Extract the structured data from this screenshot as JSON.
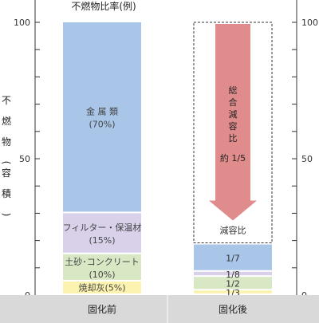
{
  "chart_data": {
    "type": "bar",
    "title": "不燃物比率(例)",
    "ylabel": "不燃物(容積)",
    "ylim": [
      0,
      100
    ],
    "yticks": [
      0,
      50,
      100
    ],
    "categories": [
      "固化前",
      "固化後"
    ],
    "before": {
      "segments": [
        {
          "name": "焼却灰",
          "label": "焼却灰(5%)",
          "value": 5,
          "color": "#fcf3b0"
        },
        {
          "name": "土砂・コンクリート",
          "label": "土砂･コンクリート\n(10%)",
          "value": 10,
          "color": "#d8e8c4"
        },
        {
          "name": "フィルター・保温材",
          "label": "フィルター・保温材\n(15%)",
          "value": 15,
          "color": "#d9d0ea"
        },
        {
          "name": "金属類",
          "label": "金 属 類\n(70%)",
          "value": 70,
          "color": "#a9c6e8"
        }
      ]
    },
    "after": {
      "segments": [
        {
          "ratio": "1/3",
          "value": 1.67,
          "color": "#fcf3b0"
        },
        {
          "ratio": "1/2",
          "value": 5,
          "color": "#d8e8c4"
        },
        {
          "ratio": "1/8",
          "value": 1.88,
          "color": "#d9d0ea"
        },
        {
          "ratio": "1/7",
          "value": 10,
          "color": "#a9c6e8"
        }
      ],
      "reduction_label": "減容比",
      "arrow_label": "総合減容比\n約 1/5",
      "arrow_color": "#e08c8c"
    }
  }
}
